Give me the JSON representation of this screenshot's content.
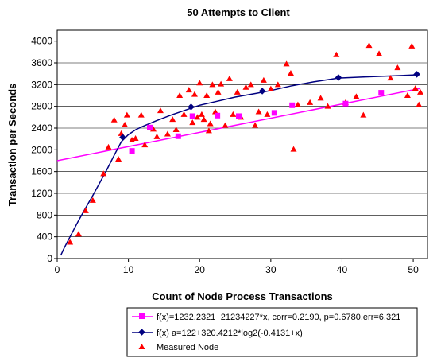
{
  "chart_data": {
    "type": "scatter",
    "title": "50 Attempts to Client",
    "xlabel": "Count of Node Process Transactions",
    "ylabel": "Transaction per Seconds",
    "xlim": [
      0,
      52
    ],
    "ylim": [
      0,
      4200
    ],
    "x_ticks": [
      0,
      10,
      20,
      30,
      40,
      50
    ],
    "y_ticks": [
      0,
      400,
      800,
      1200,
      1600,
      2000,
      2400,
      2800,
      3200,
      3600,
      4000
    ],
    "grid": "horizontal",
    "legend_position": "bottom",
    "series": [
      {
        "name": "f(x)=1232.2321+21234227*x, corr=0.2190, p=0.6780,err=6.321",
        "kind": "line-with-markers",
        "marker": "square",
        "color": "#ff00ff",
        "line_x": [
          0,
          51
        ],
        "line_y": [
          1800,
          3130
        ],
        "points": [
          {
            "x": 10.5,
            "y": 1980
          },
          {
            "x": 13,
            "y": 2410
          },
          {
            "x": 17,
            "y": 2250
          },
          {
            "x": 19,
            "y": 2620
          },
          {
            "x": 22.5,
            "y": 2630
          },
          {
            "x": 25.5,
            "y": 2620
          },
          {
            "x": 30.5,
            "y": 2680
          },
          {
            "x": 33,
            "y": 2820
          },
          {
            "x": 40.5,
            "y": 2850
          },
          {
            "x": 45.5,
            "y": 3050
          }
        ]
      },
      {
        "name": "f(x) a=122+320.4212*log2(-0.4131+x)",
        "kind": "curve-with-markers",
        "marker": "diamond",
        "color": "#000080",
        "curve": [
          {
            "x": 0.5,
            "y": 60
          },
          {
            "x": 1,
            "y": 200
          },
          {
            "x": 2,
            "y": 450
          },
          {
            "x": 3,
            "y": 700
          },
          {
            "x": 4,
            "y": 930
          },
          {
            "x": 5,
            "y": 1160
          },
          {
            "x": 6,
            "y": 1400
          },
          {
            "x": 7,
            "y": 1640
          },
          {
            "x": 8,
            "y": 1900
          },
          {
            "x": 9,
            "y": 2150
          },
          {
            "x": 10,
            "y": 2280
          },
          {
            "x": 11,
            "y": 2370
          },
          {
            "x": 12,
            "y": 2430
          },
          {
            "x": 14,
            "y": 2540
          },
          {
            "x": 16,
            "y": 2640
          },
          {
            "x": 18,
            "y": 2730
          },
          {
            "x": 20,
            "y": 2820
          },
          {
            "x": 22,
            "y": 2880
          },
          {
            "x": 25,
            "y": 2970
          },
          {
            "x": 28,
            "y": 3040
          },
          {
            "x": 30,
            "y": 3090
          },
          {
            "x": 33,
            "y": 3180
          },
          {
            "x": 36,
            "y": 3250
          },
          {
            "x": 39.5,
            "y": 3320
          },
          {
            "x": 43,
            "y": 3340
          },
          {
            "x": 47,
            "y": 3360
          },
          {
            "x": 50.5,
            "y": 3380
          }
        ],
        "points": [
          {
            "x": 9.2,
            "y": 2230
          },
          {
            "x": 18.8,
            "y": 2790
          },
          {
            "x": 28.8,
            "y": 3080
          },
          {
            "x": 39.5,
            "y": 3330
          },
          {
            "x": 50.5,
            "y": 3390
          }
        ]
      },
      {
        "name": "Measured Node",
        "kind": "scatter",
        "marker": "triangle",
        "color": "#ff0000",
        "points": [
          {
            "x": 1.8,
            "y": 300
          },
          {
            "x": 3,
            "y": 450
          },
          {
            "x": 4,
            "y": 880
          },
          {
            "x": 5,
            "y": 1070
          },
          {
            "x": 6.5,
            "y": 1560
          },
          {
            "x": 7.2,
            "y": 2050
          },
          {
            "x": 8,
            "y": 2550
          },
          {
            "x": 8.6,
            "y": 1830
          },
          {
            "x": 9,
            "y": 2300
          },
          {
            "x": 9.5,
            "y": 2460
          },
          {
            "x": 9.8,
            "y": 2640
          },
          {
            "x": 10.5,
            "y": 2180
          },
          {
            "x": 11,
            "y": 2210
          },
          {
            "x": 11.8,
            "y": 2640
          },
          {
            "x": 12.3,
            "y": 2090
          },
          {
            "x": 13.5,
            "y": 2380
          },
          {
            "x": 14,
            "y": 2240
          },
          {
            "x": 14.5,
            "y": 2720
          },
          {
            "x": 15.5,
            "y": 2290
          },
          {
            "x": 16.2,
            "y": 2560
          },
          {
            "x": 16.7,
            "y": 2370
          },
          {
            "x": 17.2,
            "y": 3000
          },
          {
            "x": 17.8,
            "y": 2650
          },
          {
            "x": 18.5,
            "y": 3100
          },
          {
            "x": 19,
            "y": 2500
          },
          {
            "x": 19.3,
            "y": 3020
          },
          {
            "x": 19.7,
            "y": 2600
          },
          {
            "x": 20,
            "y": 3230
          },
          {
            "x": 20.3,
            "y": 2650
          },
          {
            "x": 20.6,
            "y": 2560
          },
          {
            "x": 21,
            "y": 3000
          },
          {
            "x": 21.3,
            "y": 2350
          },
          {
            "x": 21.5,
            "y": 2480
          },
          {
            "x": 21.8,
            "y": 3200
          },
          {
            "x": 22.2,
            "y": 2700
          },
          {
            "x": 22.6,
            "y": 3060
          },
          {
            "x": 23,
            "y": 3210
          },
          {
            "x": 23.6,
            "y": 2450
          },
          {
            "x": 24.2,
            "y": 3310
          },
          {
            "x": 24.7,
            "y": 2650
          },
          {
            "x": 25.3,
            "y": 3060
          },
          {
            "x": 25.8,
            "y": 2600
          },
          {
            "x": 26.5,
            "y": 3150
          },
          {
            "x": 27.2,
            "y": 3200
          },
          {
            "x": 27.8,
            "y": 2450
          },
          {
            "x": 28.3,
            "y": 2700
          },
          {
            "x": 29,
            "y": 3280
          },
          {
            "x": 29.5,
            "y": 2650
          },
          {
            "x": 30,
            "y": 3120
          },
          {
            "x": 31,
            "y": 3200
          },
          {
            "x": 32.2,
            "y": 3580
          },
          {
            "x": 32.8,
            "y": 3410
          },
          {
            "x": 33.2,
            "y": 2010
          },
          {
            "x": 33.8,
            "y": 2830
          },
          {
            "x": 35.5,
            "y": 2870
          },
          {
            "x": 37,
            "y": 2950
          },
          {
            "x": 38,
            "y": 2800
          },
          {
            "x": 39.2,
            "y": 3750
          },
          {
            "x": 40.5,
            "y": 2870
          },
          {
            "x": 42,
            "y": 2980
          },
          {
            "x": 43,
            "y": 2640
          },
          {
            "x": 43.8,
            "y": 3920
          },
          {
            "x": 45.2,
            "y": 3770
          },
          {
            "x": 46.8,
            "y": 3320
          },
          {
            "x": 47.8,
            "y": 3510
          },
          {
            "x": 49.2,
            "y": 3000
          },
          {
            "x": 49.8,
            "y": 3910
          },
          {
            "x": 50.3,
            "y": 3130
          },
          {
            "x": 50.8,
            "y": 2830
          },
          {
            "x": 51,
            "y": 3060
          }
        ]
      }
    ]
  }
}
